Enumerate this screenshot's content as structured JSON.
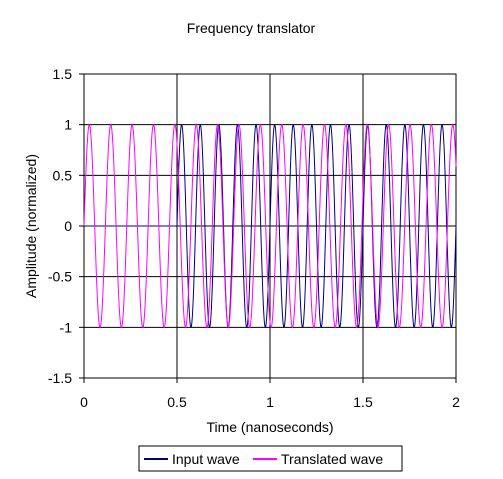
{
  "chart_data": {
    "type": "line",
    "title": "Frequency translator",
    "xlabel": "Time (nanoseconds)",
    "ylabel": "Amplitude (normalized)",
    "xlim": [
      0,
      2
    ],
    "ylim": [
      -1.5,
      1.5
    ],
    "x_ticks": [
      0,
      0.5,
      1,
      1.5,
      2
    ],
    "x_tick_labels": [
      "0",
      "0.5",
      "1",
      "1.5",
      "2"
    ],
    "y_ticks": [
      1.5,
      1,
      0.5,
      0,
      -0.5,
      -1,
      -1.5
    ],
    "y_tick_labels": [
      "1.5",
      "1",
      "0.5",
      "0",
      "-0.5",
      "-1",
      "-1.5"
    ],
    "grid": {
      "vertical": true,
      "horizontal": true
    },
    "legend_position": "bottom",
    "series": [
      {
        "name": "Input wave",
        "color": "#000080",
        "x": [
          0.5,
          2.0
        ],
        "y": [
          0,
          0
        ],
        "waveform": "sine",
        "start_time": 0.5,
        "frequency_ghz": 10,
        "amplitude": 1
      },
      {
        "name": "Translated wave",
        "color": "#FF00FF",
        "x": [
          0.0,
          2.0
        ],
        "y": [
          0,
          0
        ],
        "waveform": "sine",
        "start_time": 0,
        "frequency_ghz": 8.7,
        "amplitude": 1
      }
    ]
  }
}
